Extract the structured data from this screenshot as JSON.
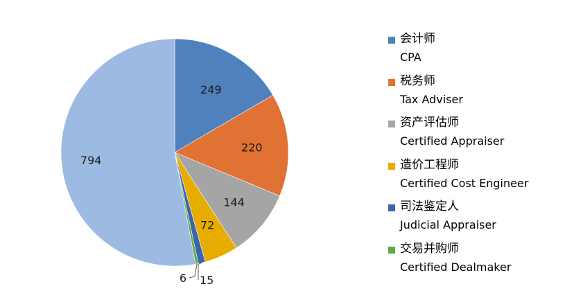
{
  "chart_data": {
    "type": "pie",
    "categories": [
      "会计师 CPA",
      "税务师 Tax Adviser",
      "资产评估师 Certified Appraiser",
      "造价工程师 Certified Cost Engineer",
      "司法鉴定人 Judicial Appraiser",
      "交易并购师 Certified Dealmaker",
      ""
    ],
    "values": [
      249,
      220,
      144,
      72,
      15,
      6,
      794
    ],
    "colors": [
      "#4f81bd",
      "#e07234",
      "#a5a5a5",
      "#e6ad00",
      "#3b64ad",
      "#5eaa45",
      "#9dbbe2"
    ],
    "legend_position": "right",
    "legend": [
      {
        "zh": "会计师",
        "en": "CPA",
        "color": "#4f81bd"
      },
      {
        "zh": "税务师",
        "en": "Tax Adviser",
        "color": "#e07234"
      },
      {
        "zh": "资产评估师",
        "en": "Certified Appraiser",
        "color": "#a5a5a5"
      },
      {
        "zh": "造价工程师",
        "en": "Certified Cost Engineer",
        "color": "#e6ad00"
      },
      {
        "zh": "司法鉴定人",
        "en": "Judicial Appraiser",
        "color": "#3b64ad"
      },
      {
        "zh": "交易并购师",
        "en": "Certified Dealmaker",
        "color": "#5eaa45"
      }
    ],
    "data_labels": [
      "249",
      "220",
      "144",
      "72",
      "15",
      "6",
      "794"
    ]
  }
}
